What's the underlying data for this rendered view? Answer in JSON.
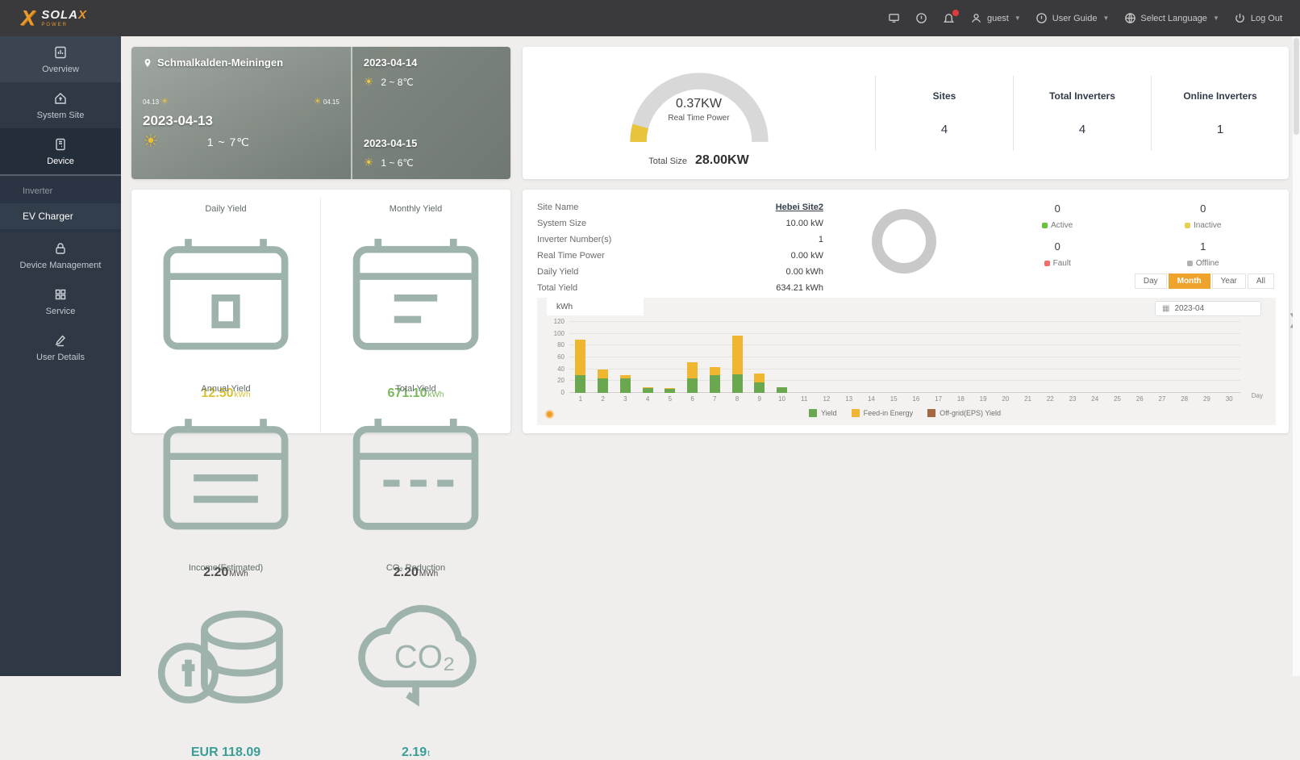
{
  "topbar": {
    "brand": "SOLA",
    "brand_x": "X",
    "brand_sub": "POWER",
    "user": "guest",
    "user_guide": "User Guide",
    "select_language": "Select Language",
    "log_out": "Log Out"
  },
  "sidebar": {
    "items": [
      {
        "label": "Overview"
      },
      {
        "label": "System Site"
      },
      {
        "label": "Device"
      },
      {
        "label": "Device Management"
      },
      {
        "label": "Service"
      },
      {
        "label": "User Details"
      }
    ],
    "submenu": [
      {
        "label": "Inverter"
      },
      {
        "label": "EV Charger"
      }
    ]
  },
  "weather": {
    "location": "Schmalkalden-Meiningen",
    "today_date": "2023-04-13",
    "today_temp": "1 ~ 7℃",
    "range_start": "04.13",
    "range_end": "04.15",
    "forecast": [
      {
        "date": "2023-04-14",
        "temp": "2 ~ 8℃"
      },
      {
        "date": "2023-04-15",
        "temp": "1 ~ 6℃"
      }
    ]
  },
  "gauge": {
    "value": "0.37KW",
    "label": "Real Time Power",
    "total_label": "Total Size",
    "total_value": "28.00KW",
    "accent_color": "#e8c43c",
    "track_color": "#d8d8d8"
  },
  "stats": [
    {
      "label": "Sites",
      "value": "4"
    },
    {
      "label": "Total Inverters",
      "value": "4"
    },
    {
      "label": "Online Inverters",
      "value": "1"
    }
  ],
  "yield_card": {
    "cells": [
      {
        "label": "Daily Yield",
        "value": "12.50",
        "unit": "kWh",
        "color": "#d9c235"
      },
      {
        "label": "Monthly Yield",
        "value": "671.10",
        "unit": "kWh",
        "color": "#7ab85c"
      },
      {
        "label": "Annual Yield",
        "value": "2.20",
        "unit": "MWh",
        "color": "#4a4a4a"
      },
      {
        "label": "Total Yield",
        "value": "2.20",
        "unit": "MWh",
        "color": "#4a4a4a"
      },
      {
        "label": "Income(Estimated)",
        "value": "EUR 118.09",
        "unit": "",
        "color": "#3a9e97"
      },
      {
        "label": "CO₂ Reduction",
        "value": "2.19",
        "unit": "t",
        "color": "#3a9e97"
      }
    ]
  },
  "site": {
    "info": [
      {
        "label": "Site Name",
        "value": "Hebei Site2"
      },
      {
        "label": "System Size",
        "value": "10.00 kW"
      },
      {
        "label": "Inverter Number(s)",
        "value": "1"
      },
      {
        "label": "Real Time Power",
        "value": "0.00 kW"
      },
      {
        "label": "Daily Yield",
        "value": "0.00 kWh"
      },
      {
        "label": "Total Yield",
        "value": "634.21 kWh"
      }
    ],
    "status": [
      {
        "label": "Active",
        "value": "0",
        "color": "#67c23a"
      },
      {
        "label": "Inactive",
        "value": "0",
        "color": "#e6cf4e"
      },
      {
        "label": "Fault",
        "value": "0",
        "color": "#f56c6c"
      },
      {
        "label": "Offline",
        "value": "1",
        "color": "#b0b0b0"
      }
    ],
    "ranges": [
      {
        "label": "Day",
        "selected": false
      },
      {
        "label": "Month",
        "selected": true
      },
      {
        "label": "Year",
        "selected": false
      },
      {
        "label": "All",
        "selected": false
      }
    ],
    "date": "2023-04",
    "unit_tab": "kWh"
  },
  "chart_data": {
    "type": "bar",
    "stacked": true,
    "title": "",
    "xlabel": "Day",
    "ylabel": "kWh",
    "x": [
      1,
      2,
      3,
      4,
      5,
      6,
      7,
      8,
      9,
      10,
      11,
      12,
      13,
      14,
      15,
      16,
      17,
      18,
      19,
      20,
      21,
      22,
      23,
      24,
      25,
      26,
      27,
      28,
      29,
      30
    ],
    "x_unit": "Day",
    "ylim": [
      0,
      120
    ],
    "yticks": [
      0,
      20,
      40,
      60,
      80,
      100,
      120
    ],
    "grid": true,
    "legend_position": "bottom",
    "series": [
      {
        "name": "Yield",
        "color": "#6aa84f",
        "values": [
          30,
          25,
          25,
          8,
          7,
          25,
          30,
          32,
          18,
          10,
          0,
          0,
          0,
          0,
          0,
          0,
          0,
          0,
          0,
          0,
          0,
          0,
          0,
          0,
          0,
          0,
          0,
          0,
          0,
          0
        ]
      },
      {
        "name": "Feed-in Energy",
        "color": "#f0b62f",
        "values": [
          60,
          15,
          5,
          2,
          1,
          27,
          14,
          65,
          15,
          0,
          0,
          0,
          0,
          0,
          0,
          0,
          0,
          0,
          0,
          0,
          0,
          0,
          0,
          0,
          0,
          0,
          0,
          0,
          0,
          0
        ]
      },
      {
        "name": "Off-grid(EPS) Yield",
        "color": "#a5673f",
        "values": [
          0,
          0,
          0,
          0,
          0,
          0,
          0,
          0,
          0,
          0,
          0,
          0,
          0,
          0,
          0,
          0,
          0,
          0,
          0,
          0,
          0,
          0,
          0,
          0,
          0,
          0,
          0,
          0,
          0,
          0
        ]
      }
    ]
  }
}
